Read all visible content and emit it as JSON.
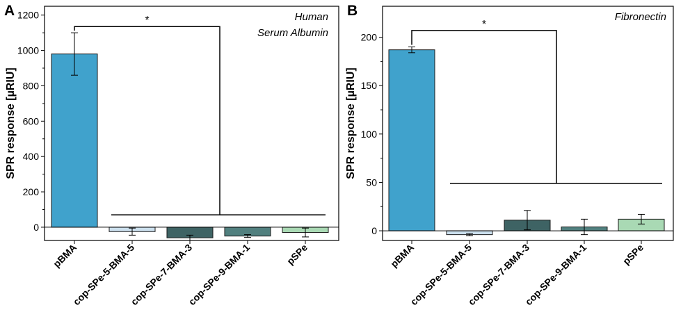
{
  "figure": {
    "panels": [
      "A",
      "B"
    ]
  },
  "chart_data": [
    {
      "type": "bar",
      "panel": "A",
      "title": "",
      "annotation": [
        "Human",
        "Serum Albumin"
      ],
      "xlabel": "",
      "ylabel": "SPR response [µRIU]",
      "categories": [
        "pBMA",
        "cop-SPe-5-BMA-5",
        "cop-SPe-7-BMA-3",
        "cop-SPe-9-BMA-1",
        "pSPe"
      ],
      "values": [
        980,
        -25,
        -60,
        -50,
        -30
      ],
      "errors": [
        120,
        20,
        15,
        8,
        25
      ],
      "colors": [
        "#40a2cc",
        "#cce0ee",
        "#3e6364",
        "#51807f",
        "#a9d9b4"
      ],
      "ylim": [
        -75,
        1250
      ],
      "yticks": [
        0,
        200,
        400,
        600,
        800,
        1000,
        1200
      ],
      "significance": {
        "label": "*",
        "bracket_top": 1135,
        "group_line": 70
      }
    },
    {
      "type": "bar",
      "panel": "B",
      "title": "",
      "annotation": [
        "Fibronectin"
      ],
      "xlabel": "",
      "ylabel": "SPR response [µRIU]",
      "categories": [
        "pBMA",
        "cop-SPe-5-BMA-5",
        "cop-SPe-7-BMA-3",
        "cop-SPe-9-BMA-1",
        "pSPe"
      ],
      "values": [
        187,
        -4,
        11,
        4,
        12
      ],
      "errors": [
        3,
        1,
        10,
        8,
        5
      ],
      "colors": [
        "#40a2cc",
        "#cce0ee",
        "#3e6364",
        "#51807f",
        "#a9d9b4"
      ],
      "ylim": [
        -10,
        232
      ],
      "yticks": [
        0,
        50,
        100,
        150,
        200
      ],
      "significance": {
        "label": "*",
        "bracket_top": 207,
        "group_line": 49
      }
    }
  ]
}
